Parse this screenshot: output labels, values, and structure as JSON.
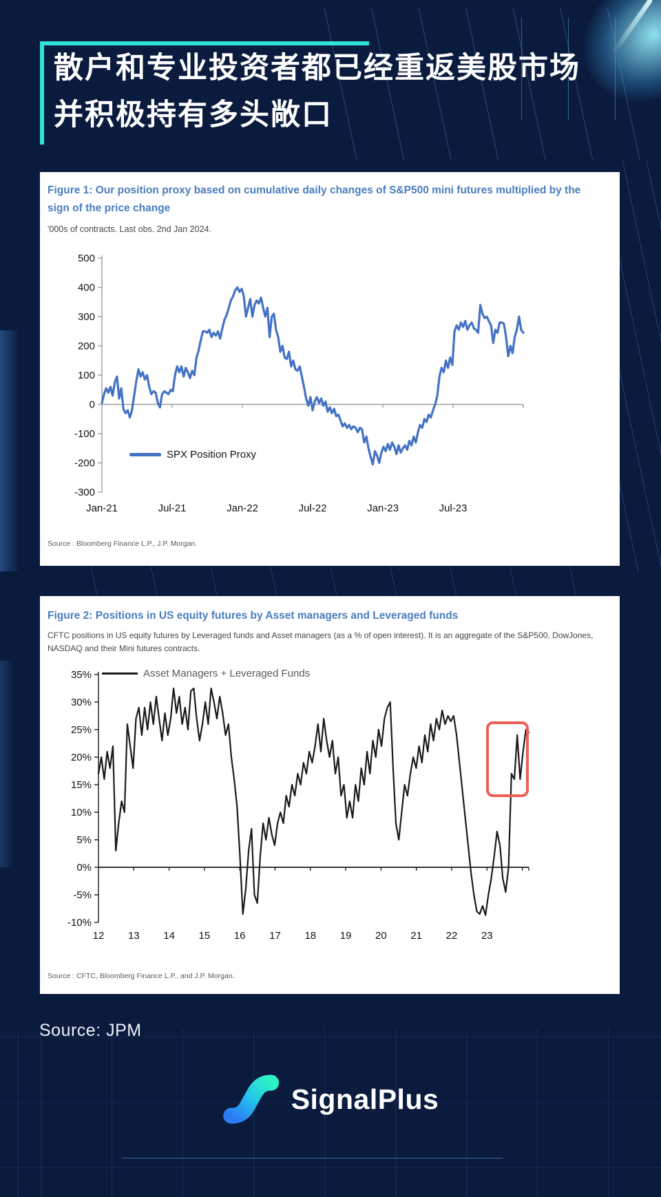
{
  "header": {
    "title_line1": "散户和专业投资者都已经重返美股市场",
    "title_line2": "并积极持有多头敞口",
    "accent_color": "#31e2d8"
  },
  "footer": {
    "source_note": "Source: JPM",
    "brand": "SignalPlus"
  },
  "icons": {
    "logo_gradient_start": "#2b7bf3",
    "logo_gradient_mid": "#23c3ec",
    "logo_gradient_end": "#2df2c6"
  },
  "chart_data": [
    {
      "type": "line",
      "title": "Figure 1: Our position proxy based on cumulative daily changes of S&P500 mini futures multiplied by the sign of the price change",
      "subtitle": "'000s of contracts. Last obs. 2nd Jan 2024.",
      "source": "Source : Bloomberg Finance L.P., J.P. Morgan.",
      "xlabel": "",
      "ylabel": "'000s of contracts",
      "ylim": [
        -300,
        500
      ],
      "grid": "zero-line only",
      "legend_position": "inside lower-left",
      "y_ticks": [
        500,
        400,
        300,
        200,
        100,
        0,
        -100,
        -200,
        -300
      ],
      "y_tick_labels": [
        "500",
        "400",
        "300",
        "200",
        "100",
        "0",
        "-100",
        "-200",
        "-300"
      ],
      "x_tick_labels": [
        "Jan-21",
        "Jul-21",
        "Jan-22",
        "Jul-22",
        "Jan-23",
        "Jul-23"
      ],
      "x_range_note": "weekly-ish samples Jan-2021 through 2-Jan-2024",
      "series": [
        {
          "name": "SPX Position Proxy",
          "color": "#4472c4",
          "values": [
            5,
            35,
            55,
            40,
            60,
            30,
            75,
            95,
            20,
            55,
            -15,
            -30,
            -20,
            -45,
            -20,
            30,
            80,
            120,
            95,
            110,
            85,
            100,
            60,
            35,
            45,
            40,
            5,
            -10,
            35,
            45,
            40,
            35,
            50,
            45,
            100,
            130,
            110,
            130,
            95,
            125,
            110,
            90,
            115,
            100,
            160,
            185,
            220,
            250,
            250,
            245,
            255,
            230,
            245,
            235,
            250,
            225,
            260,
            290,
            305,
            330,
            355,
            370,
            390,
            400,
            385,
            395,
            370,
            300,
            330,
            360,
            300,
            340,
            355,
            345,
            365,
            330,
            300,
            330,
            230,
            300,
            310,
            255,
            230,
            180,
            200,
            160,
            155,
            180,
            130,
            150,
            120,
            115,
            130,
            95,
            60,
            20,
            -5,
            25,
            -20,
            10,
            25,
            5,
            20,
            -5,
            10,
            -25,
            -10,
            -30,
            -15,
            -40,
            -35,
            -55,
            -75,
            -65,
            -80,
            -70,
            -85,
            -75,
            -80,
            -95,
            -80,
            -85,
            -130,
            -110,
            -150,
            -180,
            -205,
            -160,
            -175,
            -200,
            -165,
            -145,
            -160,
            -135,
            -155,
            -130,
            -145,
            -170,
            -140,
            -165,
            -150,
            -140,
            -155,
            -125,
            -140,
            -110,
            -130,
            -95,
            -70,
            -80,
            -50,
            -60,
            -35,
            -45,
            -20,
            0,
            30,
            95,
            125,
            110,
            150,
            125,
            160,
            135,
            250,
            270,
            255,
            280,
            265,
            285,
            255,
            270,
            280,
            260,
            255,
            245,
            340,
            310,
            295,
            300,
            285,
            270,
            210,
            255,
            245,
            280,
            280,
            275,
            230,
            165,
            200,
            175,
            230,
            255,
            300,
            255,
            245
          ]
        }
      ]
    },
    {
      "type": "line",
      "title": "Figure 2: Positions in US equity futures by Asset managers and Leveraged funds",
      "subtitle": "CFTC positions in US equity futures by Leveraged funds and Asset managers (as a % of open interest). It is an aggregate of the S&P500, DowJones, NASDAQ and their Mini futures contracts.",
      "source": "Source : CFTC, Bloomberg Finance L.P., and J.P. Morgan.",
      "xlabel": "",
      "ylabel": "% of open interest",
      "ylim": [
        -10,
        35
      ],
      "grid": "zero-line only",
      "legend_position": "inside top-left",
      "y_ticks": [
        35,
        30,
        25,
        20,
        15,
        10,
        5,
        0,
        -5,
        -10
      ],
      "y_tick_labels": [
        "35%",
        "30%",
        "25%",
        "20%",
        "15%",
        "10%",
        "5%",
        "0%",
        "-5%",
        "-10%"
      ],
      "x_tick_labels": [
        "12",
        "13",
        "14",
        "15",
        "16",
        "17",
        "18",
        "19",
        "20",
        "21",
        "22",
        "23"
      ],
      "x_range_note": "weekly samples 2012 through early Jan-2024",
      "series": [
        {
          "name": "Asset Managers + Leveraged Funds",
          "color": "#1a1a1a",
          "values": [
            17,
            20,
            16,
            21,
            18,
            22,
            3,
            8,
            12,
            10,
            26,
            22,
            18,
            27,
            29,
            24,
            29,
            25,
            30,
            26,
            31,
            27,
            23,
            28,
            24,
            27,
            32.5,
            28,
            31,
            26,
            29,
            25,
            32,
            32.5,
            27,
            23,
            26,
            30,
            26,
            32.5,
            30,
            27,
            31,
            28,
            24,
            26,
            20,
            16,
            11,
            2,
            -8.5,
            -4,
            3,
            7,
            -5,
            -6.5,
            2,
            8,
            5,
            9,
            6,
            4,
            8,
            10,
            8,
            13,
            11,
            15,
            13,
            17,
            15,
            19,
            17,
            21,
            19,
            22,
            26,
            21,
            27,
            23,
            20,
            23,
            17,
            20,
            13,
            15,
            9,
            12,
            9,
            15,
            12,
            18,
            15,
            21,
            17,
            23,
            20,
            25,
            22,
            27,
            29,
            30,
            18,
            8,
            5,
            10,
            15,
            13,
            17,
            20,
            18,
            22,
            19,
            24,
            21,
            26,
            23,
            27,
            25,
            28.5,
            26,
            27.5,
            26.5,
            27.5,
            24,
            19,
            14,
            9,
            4,
            -1,
            -5,
            -8,
            -8.5,
            -7,
            -8.7,
            -5,
            -2,
            2,
            6.5,
            4,
            -2,
            -4.5,
            0,
            17,
            16,
            24,
            16,
            21,
            25,
            24.5
          ]
        }
      ],
      "annotation": {
        "type": "highlight-box",
        "color": "#ed5f55",
        "y_range": [
          13.5,
          26.5
        ],
        "x_coverage": "final months of 2023 rally"
      }
    }
  ]
}
